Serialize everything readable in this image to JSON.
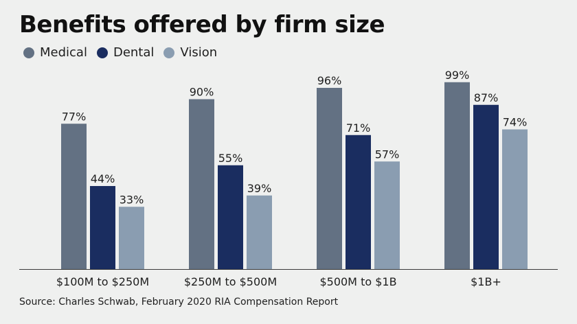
{
  "chart_data": {
    "type": "bar",
    "title": "Benefits offered by firm size",
    "xlabel": "",
    "ylabel": "",
    "ylim": [
      0,
      100
    ],
    "grid": false,
    "legend_position": "top-left",
    "categories": [
      "$100M to $250M",
      "$250M to $500M",
      "$500M to $1B",
      "$1B+"
    ],
    "value_suffix": "%",
    "series": [
      {
        "name": "Medical",
        "color": "#637183",
        "values": [
          77,
          90,
          96,
          99
        ]
      },
      {
        "name": "Dental",
        "color": "#1a2d60",
        "values": [
          44,
          55,
          71,
          87
        ]
      },
      {
        "name": "Vision",
        "color": "#8a9db1",
        "values": [
          33,
          39,
          57,
          74
        ]
      }
    ],
    "source": "Source: Charles Schwab, February 2020 RIA Compensation Report"
  }
}
